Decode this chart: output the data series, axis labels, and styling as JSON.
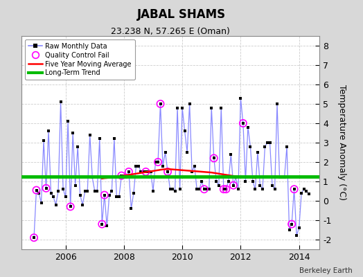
{
  "title": "JABAL SHAMS",
  "subtitle": "23.238 N, 57.265 E (Oman)",
  "ylabel": "Temperature Anomaly (°C)",
  "credit": "Berkeley Earth",
  "ylim": [
    -2.5,
    8.5
  ],
  "yticks": [
    -2,
    -1,
    0,
    1,
    2,
    3,
    4,
    5,
    6,
    7,
    8
  ],
  "xlim": [
    2004.5,
    2014.7
  ],
  "xticks": [
    2006,
    2008,
    2010,
    2012,
    2014
  ],
  "bg_color": "#d8d8d8",
  "plot_bg_color": "#ffffff",
  "line_color": "#8888ff",
  "dot_color": "#000000",
  "qc_color": "#ff00ff",
  "ma_color": "#ff0000",
  "trend_color": "#00bb00",
  "trend_value": 1.25,
  "raw_times": [
    2004.917,
    2005.083,
    2005.25,
    2005.417,
    2005.583,
    2005.75,
    2005.917,
    2006.083,
    2006.25,
    2006.417,
    2006.583,
    2006.75,
    2006.917,
    2007.083,
    2007.25,
    2007.417,
    2007.583,
    2007.75,
    2007.917,
    2008.083,
    2008.25,
    2008.417,
    2008.583,
    2008.75,
    2008.917,
    2009.083,
    2009.25,
    2009.417,
    2009.583,
    2009.75,
    2009.917,
    2010.083,
    2010.25,
    2010.417,
    2010.583,
    2010.75,
    2010.917,
    2011.083,
    2011.25,
    2011.417,
    2011.583,
    2011.75,
    2011.917,
    2012.083,
    2012.25,
    2012.417,
    2012.583,
    2012.75,
    2012.917,
    2013.083,
    2013.25,
    2013.417,
    2013.583,
    2013.75,
    2013.917,
    2014.083,
    2014.25,
    2014.417
  ],
  "raw_values": [
    -1.9,
    0.5,
    3.1,
    3.6,
    0.2,
    5.1,
    0.6,
    4.1,
    3.5,
    2.8,
    -0.2,
    0.5,
    1.2,
    0.5,
    -1.2,
    -1.3,
    0.5,
    0.2,
    1.3,
    1.2,
    -0.4,
    1.8,
    1.5,
    1.5,
    1.5,
    2.0,
    5.0,
    2.5,
    0.6,
    0.5,
    0.6,
    4.8,
    5.0,
    1.8,
    0.6,
    0.6,
    0.6,
    2.2,
    0.8,
    0.6,
    1.0,
    0.8,
    0.6,
    4.0,
    3.8,
    2.8,
    2.5,
    0.6,
    3.0,
    0.8,
    5.0,
    1.2,
    2.8,
    -1.5,
    -1.8,
    0.4,
    0.5,
    0.6
  ],
  "raw_times_full": [
    2004.917,
    2005.0,
    2005.083,
    2005.167,
    2005.25,
    2005.333,
    2005.417,
    2005.5,
    2005.583,
    2005.667,
    2005.75,
    2005.833,
    2005.917,
    2006.0,
    2006.083,
    2006.167,
    2006.25,
    2006.333,
    2006.417,
    2006.5,
    2006.583,
    2006.667,
    2006.75,
    2006.833,
    2006.917,
    2007.0,
    2007.083,
    2007.167,
    2007.25,
    2007.333,
    2007.417,
    2007.5,
    2007.583,
    2007.667,
    2007.75,
    2007.833,
    2007.917,
    2008.0,
    2008.083,
    2008.167,
    2008.25,
    2008.333,
    2008.417,
    2008.5,
    2008.583,
    2008.667,
    2008.75,
    2008.833,
    2008.917,
    2009.0,
    2009.083,
    2009.167,
    2009.25,
    2009.333,
    2009.417,
    2009.5,
    2009.583,
    2009.667,
    2009.75,
    2009.833,
    2009.917,
    2010.0,
    2010.083,
    2010.167,
    2010.25,
    2010.333,
    2010.417,
    2010.5,
    2010.583,
    2010.667,
    2010.75,
    2010.833,
    2010.917,
    2011.0,
    2011.083,
    2011.167,
    2011.25,
    2011.333,
    2011.417,
    2011.5,
    2011.583,
    2011.667,
    2011.75,
    2011.833,
    2011.917,
    2012.0,
    2012.083,
    2012.167,
    2012.25,
    2012.333,
    2012.417,
    2012.5,
    2012.583,
    2012.667,
    2012.75,
    2012.833,
    2012.917,
    2013.0,
    2013.083,
    2013.167,
    2013.25,
    2013.333,
    2013.417,
    2013.5,
    2013.583,
    2013.667,
    2013.75,
    2013.833,
    2013.917,
    2014.0,
    2014.083,
    2014.167,
    2014.25,
    2014.333
  ],
  "raw_values_full": [
    -1.9,
    0.55,
    0.4,
    -0.1,
    3.1,
    0.65,
    3.6,
    0.4,
    0.2,
    -0.2,
    0.5,
    5.1,
    0.6,
    0.2,
    4.1,
    -0.3,
    3.5,
    0.8,
    2.8,
    0.3,
    -0.2,
    0.5,
    0.5,
    3.4,
    1.2,
    0.5,
    0.5,
    3.2,
    -1.2,
    0.3,
    -1.3,
    0.3,
    0.5,
    3.2,
    0.2,
    0.2,
    1.3,
    1.3,
    1.2,
    1.5,
    -0.4,
    0.4,
    1.8,
    1.8,
    1.5,
    1.5,
    1.5,
    1.5,
    1.5,
    0.5,
    2.0,
    2.0,
    5.0,
    1.8,
    2.5,
    1.5,
    0.6,
    0.6,
    0.5,
    4.8,
    0.6,
    4.8,
    3.6,
    2.5,
    5.0,
    1.5,
    1.8,
    0.6,
    0.6,
    1.0,
    0.6,
    0.6,
    0.6,
    4.8,
    2.2,
    1.0,
    0.8,
    4.8,
    0.6,
    0.6,
    1.0,
    2.4,
    0.8,
    1.2,
    0.6,
    5.3,
    4.0,
    1.0,
    3.8,
    2.8,
    1.0,
    0.6,
    2.5,
    0.8,
    0.6,
    2.8,
    3.0,
    3.0,
    0.8,
    0.6,
    5.0,
    1.2,
    1.2,
    1.2,
    2.8,
    -1.5,
    -1.2,
    0.6,
    -1.8,
    -1.4,
    0.4,
    0.6,
    0.5,
    0.35
  ],
  "qc_times": [
    2004.917,
    2005.0,
    2005.333,
    2006.167,
    2007.25,
    2007.333,
    2007.917,
    2008.167,
    2008.75,
    2009.167,
    2009.25,
    2009.5,
    2010.75,
    2011.083,
    2011.417,
    2011.5,
    2011.75,
    2012.083,
    2013.75,
    2013.833
  ],
  "qc_values": [
    -1.9,
    0.55,
    0.65,
    -0.3,
    -1.2,
    0.3,
    1.3,
    1.5,
    1.5,
    2.0,
    5.0,
    1.5,
    0.6,
    2.2,
    0.6,
    0.6,
    0.8,
    4.0,
    -1.2,
    0.6
  ],
  "ma_times": [
    2007.25,
    2007.333,
    2007.417,
    2007.5,
    2007.583,
    2007.667,
    2007.75,
    2007.833,
    2007.917,
    2008.0,
    2008.083,
    2008.167,
    2008.25,
    2008.333,
    2008.417,
    2008.5,
    2008.583,
    2008.667,
    2008.75,
    2008.833,
    2008.917,
    2009.0,
    2009.083,
    2009.167,
    2009.25,
    2009.333,
    2009.417,
    2009.5,
    2009.583,
    2009.667,
    2009.75,
    2009.833,
    2009.917,
    2010.0,
    2010.083,
    2010.167,
    2010.25,
    2010.333,
    2010.417,
    2010.5,
    2010.583,
    2010.667,
    2010.75,
    2010.833,
    2010.917,
    2011.0,
    2011.083,
    2011.167,
    2011.25,
    2011.333,
    2011.417,
    2011.5,
    2011.583,
    2011.667,
    2011.75,
    2011.833,
    2011.917,
    2012.0,
    2012.083,
    2012.167,
    2012.25,
    2012.333,
    2012.417,
    2012.5
  ],
  "ma_values": [
    1.15,
    1.17,
    1.18,
    1.2,
    1.22,
    1.24,
    1.25,
    1.27,
    1.28,
    1.3,
    1.32,
    1.34,
    1.36,
    1.38,
    1.4,
    1.42,
    1.44,
    1.46,
    1.48,
    1.5,
    1.52,
    1.54,
    1.56,
    1.58,
    1.6,
    1.62,
    1.63,
    1.64,
    1.63,
    1.62,
    1.61,
    1.6,
    1.59,
    1.58,
    1.57,
    1.56,
    1.55,
    1.54,
    1.53,
    1.52,
    1.51,
    1.5,
    1.49,
    1.48,
    1.47,
    1.46,
    1.44,
    1.42,
    1.4,
    1.38,
    1.36,
    1.34,
    1.32,
    1.3,
    1.28,
    1.26,
    1.25,
    1.24,
    1.23,
    1.22,
    1.21,
    1.2,
    1.19,
    1.18
  ]
}
